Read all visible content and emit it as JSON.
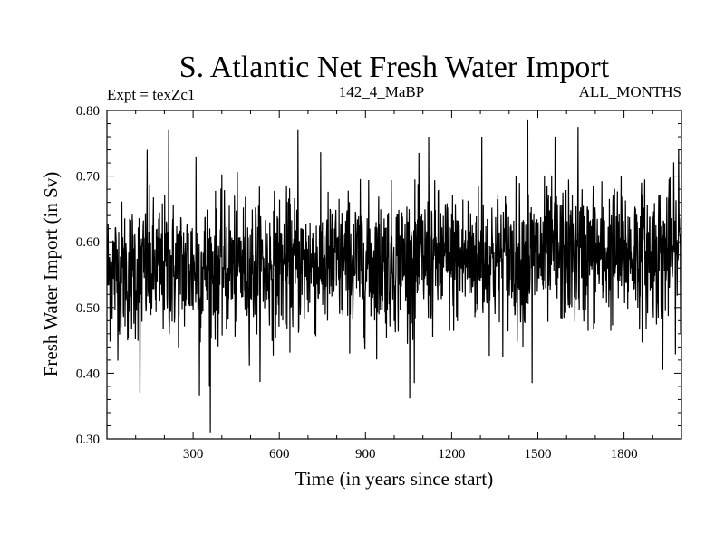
{
  "chart_data": {
    "type": "line",
    "title": "S. Atlantic Net Fresh Water Import",
    "subtitle_left": "Expt = texZc1",
    "subtitle_center": "142_4_MaBP",
    "subtitle_right": "ALL_MONTHS",
    "xlabel": "Time (in years since start)",
    "ylabel": "Fresh Water Import (in Sv)",
    "xlim": [
      0,
      2000
    ],
    "ylim": [
      0.3,
      0.8
    ],
    "xticks": [
      300,
      600,
      900,
      1200,
      1500,
      1800
    ],
    "xtick_labels": [
      "300",
      "600",
      "900",
      "1200",
      "1500",
      "1800"
    ],
    "yticks": [
      0.3,
      0.4,
      0.5,
      0.6,
      0.7,
      0.8
    ],
    "ytick_labels": [
      "0.30",
      "0.40",
      "0.50",
      "0.60",
      "0.70",
      "0.80"
    ],
    "series": [
      {
        "name": "S. Atlantic Net Fresh Water Import",
        "color": "#000000",
        "n_points": 2000,
        "x_start": 1,
        "x_step": 1,
        "mean_start": 0.555,
        "mean_end": 0.585,
        "std": 0.052,
        "min": 0.31,
        "max": 0.785,
        "extremes": [
          {
            "x": 72,
            "y": 0.45
          },
          {
            "x": 115,
            "y": 0.37
          },
          {
            "x": 140,
            "y": 0.74
          },
          {
            "x": 215,
            "y": 0.77
          },
          {
            "x": 310,
            "y": 0.73
          },
          {
            "x": 322,
            "y": 0.365
          },
          {
            "x": 360,
            "y": 0.31
          },
          {
            "x": 665,
            "y": 0.77
          },
          {
            "x": 1070,
            "y": 0.385
          },
          {
            "x": 1120,
            "y": 0.76
          },
          {
            "x": 1305,
            "y": 0.76
          },
          {
            "x": 1465,
            "y": 0.785
          },
          {
            "x": 1480,
            "y": 0.385
          },
          {
            "x": 1560,
            "y": 0.76
          },
          {
            "x": 1640,
            "y": 0.775
          },
          {
            "x": 1935,
            "y": 0.405
          },
          {
            "x": 1990,
            "y": 0.74
          }
        ]
      }
    ]
  }
}
